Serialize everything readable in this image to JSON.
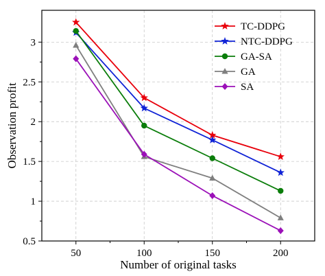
{
  "chart_data": {
    "type": "line",
    "title": "",
    "xlabel": "Number of original tasks",
    "ylabel": "Observation profit",
    "x": [
      50,
      100,
      150,
      200
    ],
    "xlim": [
      25,
      225
    ],
    "ylim": [
      0.5,
      3.4
    ],
    "yticks": [
      0.5,
      1,
      1.5,
      2,
      2.5,
      3
    ],
    "ytick_labels": [
      "0.5",
      "1",
      "1.5",
      "2",
      "2.5",
      "3"
    ],
    "xtick_labels": [
      "50",
      "100",
      "150",
      "200"
    ],
    "grid": true,
    "legend_position": "top-right",
    "series": [
      {
        "name": "TC-DDPG",
        "color": "#e8000b",
        "marker": "star",
        "values": [
          3.25,
          2.3,
          1.83,
          1.56
        ]
      },
      {
        "name": "NTC-DDPG",
        "color": "#0f22d6",
        "marker": "star",
        "values": [
          3.12,
          2.17,
          1.77,
          1.36
        ]
      },
      {
        "name": "GA-SA",
        "color": "#0a7d0a",
        "marker": "circle",
        "values": [
          3.14,
          1.95,
          1.54,
          1.13
        ]
      },
      {
        "name": "GA",
        "color": "#7f7f7f",
        "marker": "triangle",
        "values": [
          2.96,
          1.56,
          1.29,
          0.79
        ]
      },
      {
        "name": "SA",
        "color": "#9b10b8",
        "marker": "diamond",
        "values": [
          2.79,
          1.59,
          1.07,
          0.63
        ]
      }
    ]
  }
}
